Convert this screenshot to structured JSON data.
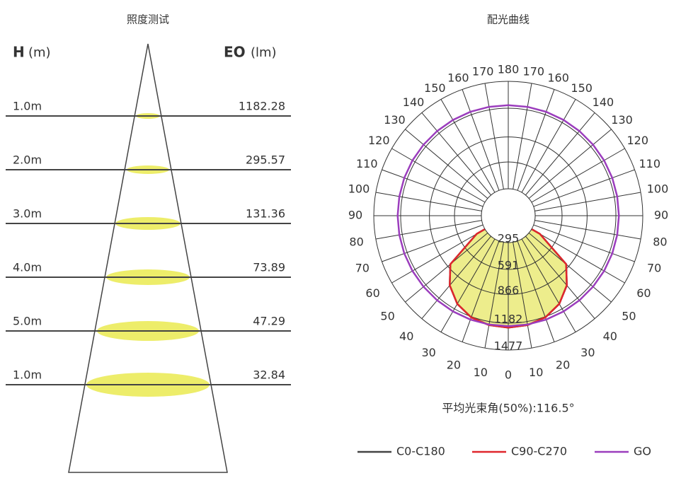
{
  "illuminance": {
    "title": "照度测试",
    "h_label": "H",
    "h_unit": "(m)",
    "e_label": "EO",
    "e_unit": "(lm)",
    "rows": [
      {
        "height": "1.0m",
        "value": 1182.28
      },
      {
        "height": "2.0m",
        "value": 295.57
      },
      {
        "height": "3.0m",
        "value": 131.36
      },
      {
        "height": "4.0m",
        "value": 73.89
      },
      {
        "height": "5.0m",
        "value": 47.29
      },
      {
        "height": "1.0m",
        "value": 32.84
      }
    ]
  },
  "chart_data": {
    "type": "polar",
    "title": "配光曲线",
    "angles": [
      0,
      10,
      20,
      30,
      40,
      50,
      60,
      70,
      80,
      90,
      100,
      110,
      120,
      130,
      140,
      150,
      160,
      170,
      180
    ],
    "rlim": [
      0,
      1477
    ],
    "rticks": [
      295,
      591,
      866,
      1182,
      1477
    ],
    "series": [
      {
        "name": "C0-C180",
        "color": "#444444",
        "values": [
          1230,
          1220,
          1190,
          1120,
          1000,
          830,
          400,
          0,
          0,
          0,
          0,
          0,
          0,
          0,
          0,
          0,
          0,
          0,
          0
        ]
      },
      {
        "name": "C90-C270",
        "color": "#e0262c",
        "fill": "#eded8c",
        "values": [
          1230,
          1220,
          1190,
          1120,
          1000,
          830,
          400,
          0,
          0,
          0,
          0,
          0,
          0,
          0,
          0,
          0,
          0,
          0,
          0
        ]
      },
      {
        "name": "GO",
        "color": "#9b3dbd",
        "values": [
          1215,
          1215,
          1215,
          1215,
          1215,
          1215,
          1215,
          1215,
          1215,
          1215,
          1215,
          1215,
          1215,
          1215,
          1215,
          1215,
          1215,
          1215,
          1215
        ]
      }
    ],
    "annotation": "平均光束角(50%):116.5°"
  }
}
